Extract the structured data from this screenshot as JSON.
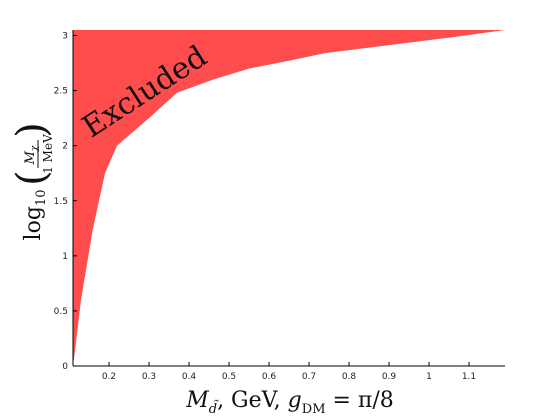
{
  "chart_data": {
    "type": "area",
    "title": "",
    "xlabel": "M_d̃, GeV, g_DM = π/8",
    "ylabel": "log10(Mχ / 1 MeV)",
    "xlim": [
      0.11,
      1.19
    ],
    "ylim": [
      0,
      3.05
    ],
    "x_ticks": [
      0.2,
      0.3,
      0.4,
      0.5,
      0.6,
      0.7,
      0.8,
      0.9,
      1,
      1.1
    ],
    "x_tick_labels": [
      "0.2",
      "0.3",
      "0.4",
      "0.5",
      "0.6",
      "0.7",
      "0.8",
      "0.9",
      "1",
      "1.1"
    ],
    "y_ticks": [
      0,
      0.5,
      1,
      1.5,
      2,
      2.5,
      3
    ],
    "y_tick_labels": [
      "0",
      "0.5",
      "1",
      "1.5",
      "2",
      "2.5",
      "3"
    ],
    "grid": false,
    "legend": "none",
    "series": [
      {
        "region": "excluded",
        "x": [
          0.112,
          0.13,
          0.16,
          0.19,
          0.22,
          0.3,
          0.37,
          0.46,
          0.55,
          0.65,
          0.74,
          0.85,
          0.96,
          1.07,
          1.19
        ],
        "boundary_y": [
          0.05,
          0.6,
          1.25,
          1.75,
          2.0,
          2.25,
          2.48,
          2.6,
          2.7,
          2.77,
          2.84,
          2.89,
          2.94,
          2.99,
          3.05
        ]
      }
    ],
    "annotation": "Excluded",
    "colors": {
      "excluded_fill": "#ff4d4d",
      "axis": "#000000"
    }
  }
}
